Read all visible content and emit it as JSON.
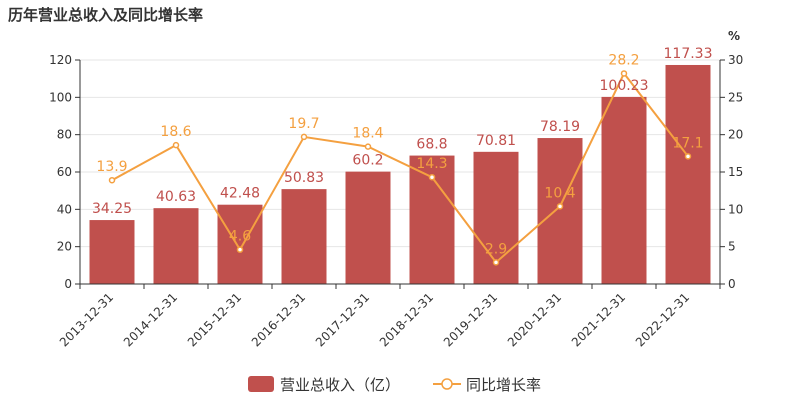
{
  "title": "历年营业总收入及同比增长率",
  "chart_data": {
    "type": "bar",
    "title": "历年营业总收入及同比增长率",
    "categories": [
      "2013-12-31",
      "2014-12-31",
      "2015-12-31",
      "2016-12-31",
      "2017-12-31",
      "2018-12-31",
      "2019-12-31",
      "2020-12-31",
      "2021-12-31",
      "2022-12-31"
    ],
    "series": [
      {
        "name": "营业总收入（亿）",
        "type": "bar",
        "axis": "left",
        "color": "#c0504d",
        "values": [
          34.25,
          40.63,
          42.48,
          50.83,
          60.2,
          68.8,
          70.81,
          78.19,
          100.23,
          117.33
        ]
      },
      {
        "name": "同比增长率",
        "type": "line",
        "axis": "right",
        "color": "#f4a040",
        "values": [
          13.9,
          18.6,
          4.6,
          19.7,
          18.4,
          14.3,
          2.9,
          10.4,
          28.2,
          17.1
        ]
      }
    ],
    "ylim_left": [
      0,
      120
    ],
    "yticks_left": [
      0,
      20,
      40,
      60,
      80,
      100,
      120
    ],
    "ylim_right": [
      0,
      30
    ],
    "yticks_right": [
      0,
      5,
      10,
      15,
      20,
      25,
      30
    ],
    "ylabel_right": "%",
    "grid": true,
    "legend_position": "bottom-center"
  }
}
